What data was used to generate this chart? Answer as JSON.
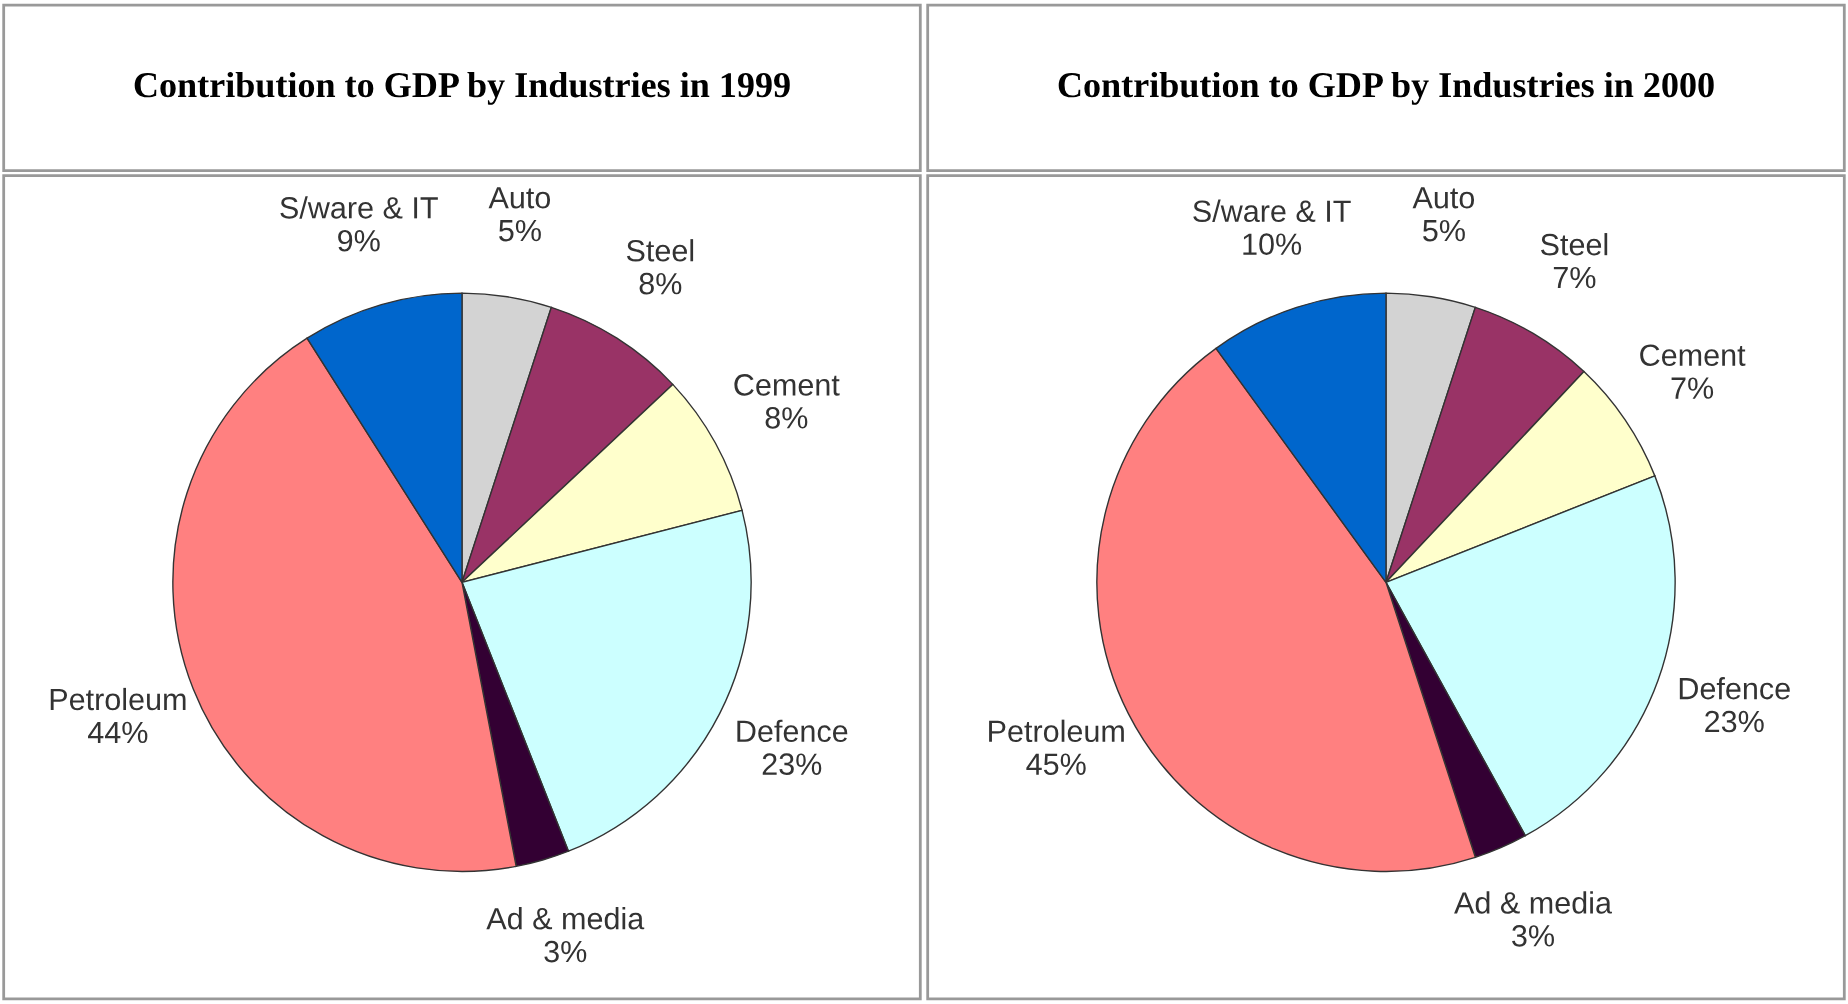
{
  "chart_data": [
    {
      "type": "pie",
      "title": "Contribution to GDP by Industries in 1999",
      "categories": [
        "Auto",
        "Steel",
        "Cement",
        "Defence",
        "Ad & media",
        "Petroleum",
        "S/ware & IT"
      ],
      "values": [
        5,
        8,
        8,
        23,
        3,
        44,
        9
      ],
      "value_labels": [
        "5%",
        "8%",
        "8%",
        "23%",
        "3%",
        "44%",
        "9%"
      ],
      "colors": [
        "#d3d3d3",
        "#993366",
        "#ffffcc",
        "#ccffff",
        "#330033",
        "#ff8080",
        "#0066cc"
      ]
    },
    {
      "type": "pie",
      "title": "Contribution to GDP by Industries in 2000",
      "categories": [
        "Auto",
        "Steel",
        "Cement",
        "Defence",
        "Ad & media",
        "Petroleum",
        "S/ware & IT"
      ],
      "values": [
        5,
        7,
        7,
        23,
        3,
        45,
        10
      ],
      "value_labels": [
        "5%",
        "7%",
        "7%",
        "23%",
        "3%",
        "45%",
        "10%"
      ],
      "colors": [
        "#d3d3d3",
        "#993366",
        "#ffffcc",
        "#ccffff",
        "#330033",
        "#ff8080",
        "#0066cc"
      ]
    }
  ]
}
